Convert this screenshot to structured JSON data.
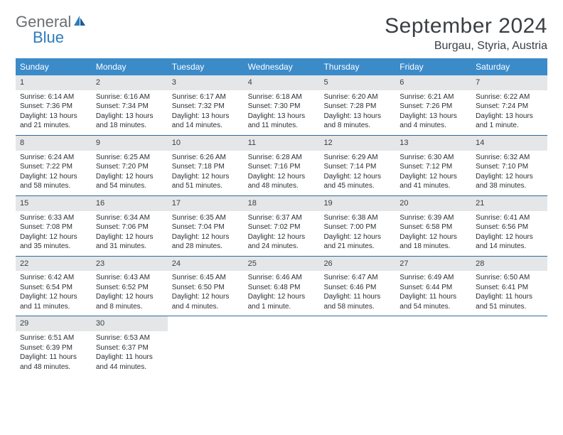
{
  "brand": {
    "general": "General",
    "blue": "Blue"
  },
  "header": {
    "month": "September 2024",
    "location": "Burgau, Styria, Austria"
  },
  "weekdays": [
    "Sunday",
    "Monday",
    "Tuesday",
    "Wednesday",
    "Thursday",
    "Friday",
    "Saturday"
  ],
  "colors": {
    "header_bar": "#3b8bc9",
    "week_divider": "#2e6b9e",
    "daynum_bg": "#e4e6e8",
    "text": "#2b2f33",
    "logo_blue": "#2e7bbf",
    "logo_gray": "#6a6f73"
  },
  "days": [
    {
      "n": "1",
      "sunrise": "6:14 AM",
      "sunset": "7:36 PM",
      "daylight": "13 hours and 21 minutes."
    },
    {
      "n": "2",
      "sunrise": "6:16 AM",
      "sunset": "7:34 PM",
      "daylight": "13 hours and 18 minutes."
    },
    {
      "n": "3",
      "sunrise": "6:17 AM",
      "sunset": "7:32 PM",
      "daylight": "13 hours and 14 minutes."
    },
    {
      "n": "4",
      "sunrise": "6:18 AM",
      "sunset": "7:30 PM",
      "daylight": "13 hours and 11 minutes."
    },
    {
      "n": "5",
      "sunrise": "6:20 AM",
      "sunset": "7:28 PM",
      "daylight": "13 hours and 8 minutes."
    },
    {
      "n": "6",
      "sunrise": "6:21 AM",
      "sunset": "7:26 PM",
      "daylight": "13 hours and 4 minutes."
    },
    {
      "n": "7",
      "sunrise": "6:22 AM",
      "sunset": "7:24 PM",
      "daylight": "13 hours and 1 minute."
    },
    {
      "n": "8",
      "sunrise": "6:24 AM",
      "sunset": "7:22 PM",
      "daylight": "12 hours and 58 minutes."
    },
    {
      "n": "9",
      "sunrise": "6:25 AM",
      "sunset": "7:20 PM",
      "daylight": "12 hours and 54 minutes."
    },
    {
      "n": "10",
      "sunrise": "6:26 AM",
      "sunset": "7:18 PM",
      "daylight": "12 hours and 51 minutes."
    },
    {
      "n": "11",
      "sunrise": "6:28 AM",
      "sunset": "7:16 PM",
      "daylight": "12 hours and 48 minutes."
    },
    {
      "n": "12",
      "sunrise": "6:29 AM",
      "sunset": "7:14 PM",
      "daylight": "12 hours and 45 minutes."
    },
    {
      "n": "13",
      "sunrise": "6:30 AM",
      "sunset": "7:12 PM",
      "daylight": "12 hours and 41 minutes."
    },
    {
      "n": "14",
      "sunrise": "6:32 AM",
      "sunset": "7:10 PM",
      "daylight": "12 hours and 38 minutes."
    },
    {
      "n": "15",
      "sunrise": "6:33 AM",
      "sunset": "7:08 PM",
      "daylight": "12 hours and 35 minutes."
    },
    {
      "n": "16",
      "sunrise": "6:34 AM",
      "sunset": "7:06 PM",
      "daylight": "12 hours and 31 minutes."
    },
    {
      "n": "17",
      "sunrise": "6:35 AM",
      "sunset": "7:04 PM",
      "daylight": "12 hours and 28 minutes."
    },
    {
      "n": "18",
      "sunrise": "6:37 AM",
      "sunset": "7:02 PM",
      "daylight": "12 hours and 24 minutes."
    },
    {
      "n": "19",
      "sunrise": "6:38 AM",
      "sunset": "7:00 PM",
      "daylight": "12 hours and 21 minutes."
    },
    {
      "n": "20",
      "sunrise": "6:39 AM",
      "sunset": "6:58 PM",
      "daylight": "12 hours and 18 minutes."
    },
    {
      "n": "21",
      "sunrise": "6:41 AM",
      "sunset": "6:56 PM",
      "daylight": "12 hours and 14 minutes."
    },
    {
      "n": "22",
      "sunrise": "6:42 AM",
      "sunset": "6:54 PM",
      "daylight": "12 hours and 11 minutes."
    },
    {
      "n": "23",
      "sunrise": "6:43 AM",
      "sunset": "6:52 PM",
      "daylight": "12 hours and 8 minutes."
    },
    {
      "n": "24",
      "sunrise": "6:45 AM",
      "sunset": "6:50 PM",
      "daylight": "12 hours and 4 minutes."
    },
    {
      "n": "25",
      "sunrise": "6:46 AM",
      "sunset": "6:48 PM",
      "daylight": "12 hours and 1 minute."
    },
    {
      "n": "26",
      "sunrise": "6:47 AM",
      "sunset": "6:46 PM",
      "daylight": "11 hours and 58 minutes."
    },
    {
      "n": "27",
      "sunrise": "6:49 AM",
      "sunset": "6:44 PM",
      "daylight": "11 hours and 54 minutes."
    },
    {
      "n": "28",
      "sunrise": "6:50 AM",
      "sunset": "6:41 PM",
      "daylight": "11 hours and 51 minutes."
    },
    {
      "n": "29",
      "sunrise": "6:51 AM",
      "sunset": "6:39 PM",
      "daylight": "11 hours and 48 minutes."
    },
    {
      "n": "30",
      "sunrise": "6:53 AM",
      "sunset": "6:37 PM",
      "daylight": "11 hours and 44 minutes."
    }
  ],
  "layout": {
    "start_weekday": 0,
    "total_cells": 35,
    "labels": {
      "sunrise": "Sunrise:",
      "sunset": "Sunset:",
      "daylight": "Daylight:"
    }
  }
}
